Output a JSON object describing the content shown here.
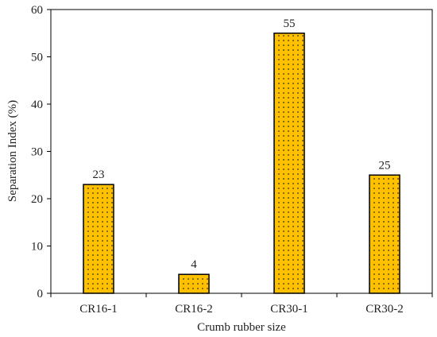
{
  "chart_data": {
    "type": "bar",
    "categories": [
      "CR16-1",
      "CR16-2",
      "CR30-1",
      "CR30-2"
    ],
    "values": [
      23,
      4,
      55,
      25
    ],
    "data_labels": [
      "23",
      "4",
      "55",
      "25"
    ],
    "title": "",
    "xlabel": "Crumb rubber size",
    "ylabel": "Separation Index (%)",
    "ylim": [
      0,
      60
    ],
    "yticks": [
      0,
      10,
      20,
      30,
      40,
      50,
      60
    ],
    "grid": false,
    "legend": "none",
    "bar_fill_color": "#FFC000",
    "bar_pattern": "dots",
    "bar_outline_color": "#000000"
  }
}
